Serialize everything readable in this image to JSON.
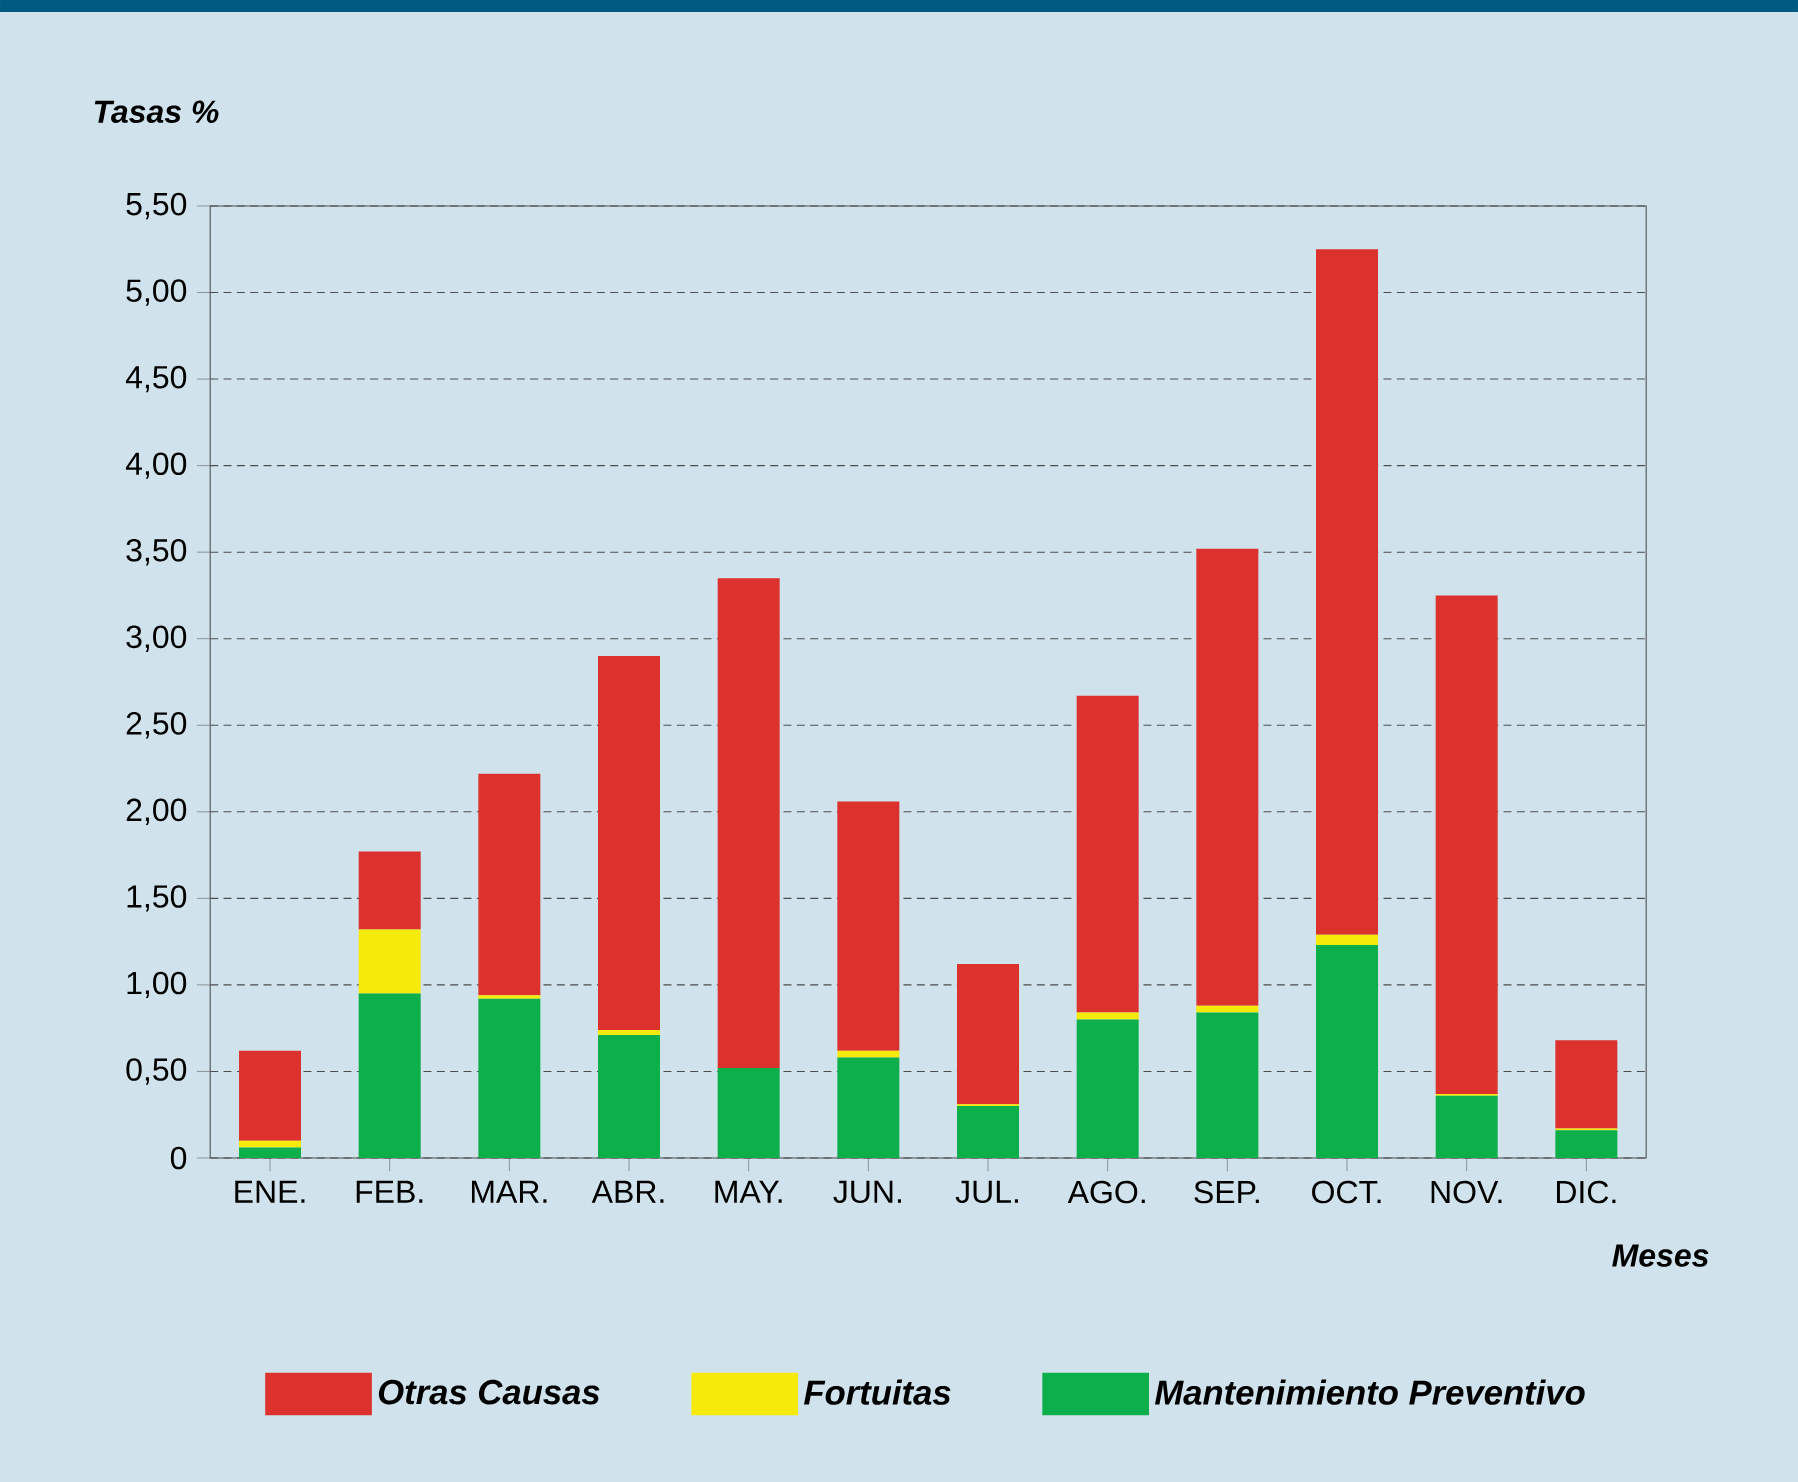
{
  "chart_data": {
    "type": "bar",
    "stacked": true,
    "ylabel": "Tasas %",
    "xlabel": "Meses",
    "categories": [
      "ENE.",
      "FEB.",
      "MAR.",
      "ABR.",
      "MAY.",
      "JUN.",
      "JUL.",
      "AGO.",
      "SEP.",
      "OCT.",
      "NOV.",
      "DIC."
    ],
    "series": [
      {
        "name": "Mantenimiento Preventivo",
        "color": "#0daf4b",
        "values": [
          0.06,
          0.95,
          0.92,
          0.71,
          0.52,
          0.58,
          0.3,
          0.8,
          0.84,
          1.23,
          0.36,
          0.16
        ]
      },
      {
        "name": "Fortuitas",
        "color": "#f5ea0a",
        "values": [
          0.04,
          0.37,
          0.02,
          0.03,
          0,
          0.04,
          0.01,
          0.04,
          0.04,
          0.06,
          0.01,
          0.01
        ]
      },
      {
        "name": "Otras Causas",
        "color": "#dc312c",
        "values": [
          0.52,
          0.45,
          1.28,
          2.16,
          2.83,
          1.44,
          0.81,
          1.83,
          2.64,
          3.96,
          2.88,
          0.51
        ]
      }
    ],
    "ylim": [
      0,
      5.5
    ],
    "yticks": [
      0,
      {
        "value": 0.5,
        "label": "0,50"
      },
      {
        "value": 1,
        "label": "1,00"
      },
      {
        "value": 1.5,
        "label": "1,50"
      },
      {
        "value": 2,
        "label": "2,00"
      },
      {
        "value": 2.5,
        "label": "2,50"
      },
      {
        "value": 3,
        "label": "3,00"
      },
      {
        "value": 3.5,
        "label": "3,50"
      },
      {
        "value": 4,
        "label": "4,00"
      },
      {
        "value": 4.5,
        "label": "4,50"
      },
      {
        "value": 5,
        "label": "5,00"
      },
      {
        "value": 5.5,
        "label": "5,50"
      }
    ],
    "grid": "y",
    "legend": "bottom"
  }
}
